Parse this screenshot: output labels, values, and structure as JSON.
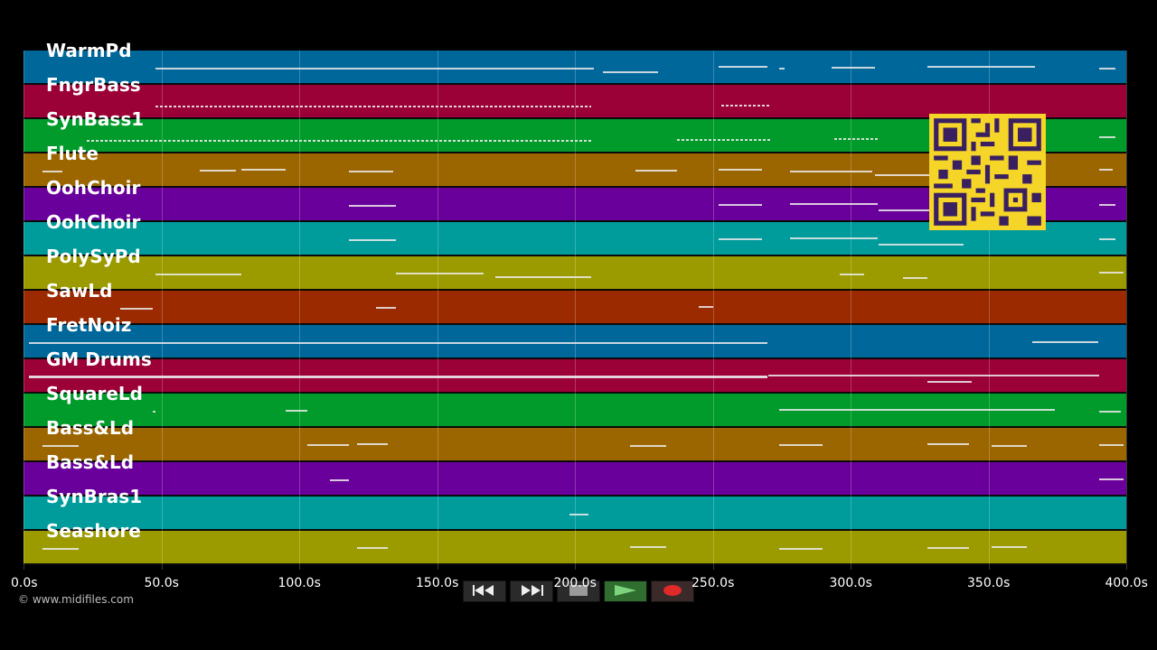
{
  "tracks": [
    {
      "name": "WarmPd",
      "color": "#00679b"
    },
    {
      "name": "FngrBass",
      "color": "#9b0037"
    },
    {
      "name": "SynBass1",
      "color": "#009b2a"
    },
    {
      "name": "Flute",
      "color": "#9b6500"
    },
    {
      "name": "OohChoir",
      "color": "#6a009b"
    },
    {
      "name": "OohChoir",
      "color": "#009b9b"
    },
    {
      "name": "PolySyPd",
      "color": "#9b9b00"
    },
    {
      "name": "SawLd",
      "color": "#9b2a00"
    },
    {
      "name": "FretNoiz",
      "color": "#00679b"
    },
    {
      "name": "GM Drums",
      "color": "#9b0037"
    },
    {
      "name": "SquareLd",
      "color": "#009b2a"
    },
    {
      "name": "Bass&Ld",
      "color": "#9b6500"
    },
    {
      "name": "Bass&Ld",
      "color": "#6a009b"
    },
    {
      "name": "SynBras1",
      "color": "#009b9b"
    },
    {
      "name": "Seashore",
      "color": "#9b9b00"
    }
  ],
  "timeline": {
    "ticks": [
      "0.0s",
      "50.0s",
      "100.0s",
      "150.0s",
      "200.0s",
      "250.0s",
      "300.0s",
      "350.0s",
      "400.0s"
    ],
    "max_seconds": 400
  },
  "transport": {
    "rewind_icon": "rewind-icon",
    "forward_icon": "fast-forward-icon",
    "stop_icon": "stop-icon",
    "play_icon": "play-icon",
    "record_icon": "record-icon"
  },
  "copyright": "© www.midifiles.com",
  "notes": [
    {
      "track": 0,
      "segments": [
        [
          48,
          207,
          1
        ],
        [
          210,
          230,
          2
        ],
        [
          252,
          270,
          1
        ],
        [
          274,
          276,
          1
        ],
        [
          293,
          309,
          1
        ],
        [
          328,
          367,
          1
        ],
        [
          390,
          396,
          1
        ]
      ]
    },
    {
      "track": 1,
      "segments": [
        [
          48,
          206,
          3
        ],
        [
          253,
          271,
          3
        ]
      ]
    },
    {
      "track": 2,
      "segments": [
        [
          23,
          206,
          3
        ],
        [
          237,
          271,
          3
        ],
        [
          294,
          310,
          3
        ],
        [
          390,
          396,
          1
        ]
      ]
    },
    {
      "track": 3,
      "segments": [
        [
          7,
          14,
          1
        ],
        [
          64,
          77,
          1
        ],
        [
          79,
          95,
          1
        ],
        [
          118,
          134,
          1
        ],
        [
          222,
          237,
          1
        ],
        [
          252,
          268,
          1
        ],
        [
          278,
          308,
          1
        ],
        [
          309,
          340,
          2
        ],
        [
          390,
          395,
          1
        ]
      ]
    },
    {
      "track": 4,
      "segments": [
        [
          118,
          135,
          1
        ],
        [
          252,
          268,
          1
        ],
        [
          278,
          310,
          1
        ],
        [
          310,
          342,
          2
        ],
        [
          390,
          396,
          1
        ]
      ]
    },
    {
      "track": 5,
      "segments": [
        [
          118,
          135,
          1
        ],
        [
          252,
          268,
          1
        ],
        [
          278,
          310,
          1
        ],
        [
          310,
          341,
          2
        ],
        [
          390,
          396,
          1
        ]
      ]
    },
    {
      "track": 6,
      "segments": [
        [
          48,
          79,
          1
        ],
        [
          135,
          167,
          1
        ],
        [
          171,
          206,
          2
        ],
        [
          296,
          305,
          1
        ],
        [
          319,
          328,
          2
        ],
        [
          390,
          399,
          1
        ]
      ]
    },
    {
      "track": 7,
      "segments": [
        [
          35,
          47,
          1
        ],
        [
          128,
          135,
          1
        ],
        [
          245,
          250,
          1
        ]
      ]
    },
    {
      "track": 8,
      "segments": [
        [
          2,
          270,
          1
        ],
        [
          366,
          390,
          1
        ]
      ]
    },
    {
      "track": 9,
      "segments": [
        [
          2,
          270,
          1
        ],
        [
          2,
          270,
          1
        ],
        [
          270,
          390,
          1
        ],
        [
          328,
          344,
          2
        ]
      ]
    },
    {
      "track": 10,
      "segments": [
        [
          47,
          48,
          1
        ],
        [
          95,
          103,
          1
        ],
        [
          274,
          374,
          1
        ],
        [
          390,
          398,
          1
        ]
      ]
    },
    {
      "track": 11,
      "segments": [
        [
          7,
          20,
          1
        ],
        [
          103,
          118,
          1
        ],
        [
          121,
          132,
          1
        ],
        [
          220,
          233,
          1
        ],
        [
          274,
          290,
          1
        ],
        [
          328,
          343,
          1
        ],
        [
          351,
          364,
          1
        ],
        [
          390,
          399,
          1
        ]
      ]
    },
    {
      "track": 12,
      "segments": [
        [
          111,
          118,
          1
        ],
        [
          390,
          399,
          1
        ]
      ]
    },
    {
      "track": 13,
      "segments": [
        [
          198,
          205,
          1
        ]
      ]
    },
    {
      "track": 14,
      "segments": [
        [
          7,
          20,
          1
        ],
        [
          121,
          132,
          1
        ],
        [
          220,
          233,
          1
        ],
        [
          274,
          290,
          1
        ],
        [
          328,
          343,
          1
        ],
        [
          351,
          364,
          1
        ]
      ]
    }
  ]
}
